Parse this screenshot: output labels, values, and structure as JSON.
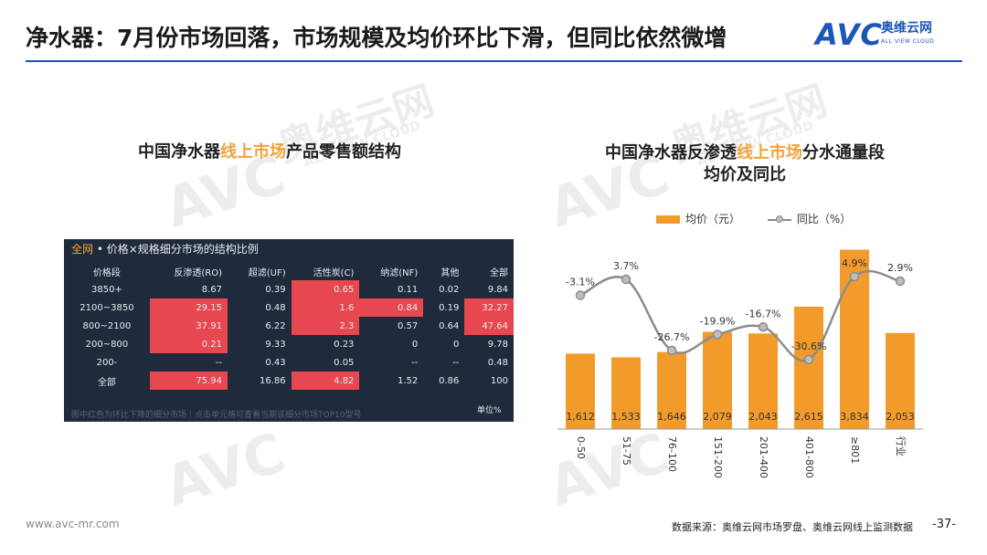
{
  "page": {
    "title": "净水器：7月份市场回落，市场规模及均价环比下滑，但同比依然微增",
    "page_number": "-37-",
    "url": "www.avc-mr.com",
    "source": "数据来源：奥维云网市场罗盘、奥维云网线上监测数据",
    "watermark_cn": "奥维云网",
    "watermark_en": "ALL VIEW CLOUD",
    "watermark_avc": "AVC"
  },
  "logo": {
    "avc": "AVC",
    "cn": "奥维云网",
    "en": "ALL VIEW CLOUD"
  },
  "left": {
    "title_pre": "中国净水器",
    "title_hl": "线上市场",
    "title_post": "产品零售额结构",
    "panel": {
      "head_accent": "全网",
      "head_text": "• 价格×规格细分市场的结构比例",
      "columns": [
        "价格段",
        "反渗透(RO)",
        "超滤(UF)",
        "活性炭(C)",
        "纳滤(NF)",
        "其他",
        "全部"
      ],
      "rows": [
        {
          "label": "3850+",
          "cells": [
            "8.67",
            "0.39",
            "0.65",
            "0.11",
            "0.02",
            "9.84"
          ]
        },
        {
          "label": "2100~3850",
          "cells": [
            "29.15",
            "0.48",
            "1.6",
            "0.84",
            "0.19",
            "32.27"
          ]
        },
        {
          "label": "800~2100",
          "cells": [
            "37.91",
            "6.22",
            "2.3",
            "0.57",
            "0.64",
            "47.64"
          ]
        },
        {
          "label": "200~800",
          "cells": [
            "0.21",
            "9.33",
            "0.23",
            "0",
            "0",
            "9.78"
          ]
        },
        {
          "label": "200-",
          "cells": [
            "--",
            "0.43",
            "0.05",
            "--",
            "--",
            "0.48"
          ]
        },
        {
          "label": "全部",
          "cells": [
            "75.94",
            "16.86",
            "4.82",
            "1.52",
            "0.86",
            "100"
          ]
        }
      ],
      "note": "图中红色为环比下降的细分市场｜点击单元格可查看当期该细分市场TOP10型号",
      "unit": "单位%"
    }
  },
  "right": {
    "title_pre": "中国净水器反渗透",
    "title_hl": "线上市场",
    "title_post": "分水通量段",
    "title_line2": "均价及同比",
    "legend_bar": "均价（元）",
    "legend_line": "同比（%）"
  },
  "chart_data": {
    "type": "bar",
    "title": "中国净水器反渗透线上市场分水通量段均价及同比",
    "categories": [
      "0-50",
      "51-75",
      "76-100",
      "151-200",
      "201-400",
      "401-800",
      "≥801",
      "行业"
    ],
    "series": [
      {
        "name": "均价（元）",
        "type": "bar",
        "values": [
          1612,
          1533,
          1646,
          2079,
          2043,
          2615,
          3834,
          2053
        ],
        "labels": [
          "1,612",
          "1,533",
          "1,646",
          "2,079",
          "2,043",
          "2,615",
          "3,834",
          "2,053"
        ]
      },
      {
        "name": "同比（%）",
        "type": "line",
        "values": [
          -3.1,
          3.7,
          -26.7,
          -19.9,
          -16.7,
          -30.6,
          4.9,
          2.9
        ],
        "labels": [
          "-3.1%",
          "3.7%",
          "-26.7%",
          "-19.9%",
          "-16.7%",
          "-30.6%",
          "4.9%",
          "2.9%"
        ]
      }
    ],
    "bar_range": [
      0,
      4000
    ],
    "line_range": [
      -33,
      8
    ],
    "colors": {
      "bar": "#f29b2b",
      "line": "#8c8c8c",
      "marker": "#bdbdbd"
    }
  }
}
